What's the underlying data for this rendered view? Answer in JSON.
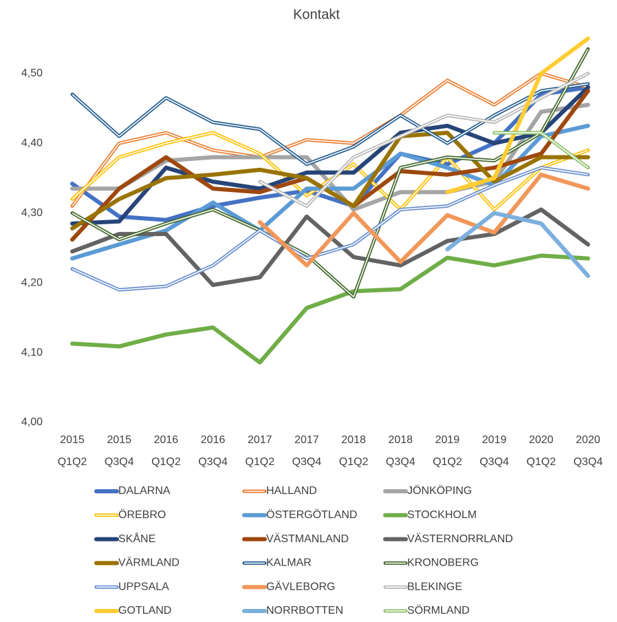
{
  "chart_data": {
    "type": "line",
    "title": "Kontakt",
    "categories": [
      "2015 Q1Q2",
      "2015 Q3Q4",
      "2016 Q1Q2",
      "2016 Q3Q4",
      "2017 Q1Q2",
      "2017 Q3Q4",
      "2018 Q1Q2",
      "2018 Q3Q4",
      "2019 Q1Q2",
      "2019 Q3Q4",
      "2020 Q1Q2",
      "2020 Q3Q4"
    ],
    "ylim": [
      4.0,
      4.55
    ],
    "yticks": [
      {
        "value": 4.0,
        "label": "4,00"
      },
      {
        "value": 4.1,
        "label": "4,10"
      },
      {
        "value": 4.2,
        "label": "4,20"
      },
      {
        "value": 4.3,
        "label": "4,30"
      },
      {
        "value": 4.4,
        "label": "4,40"
      },
      {
        "value": 4.5,
        "label": "4,50"
      }
    ],
    "grid": false,
    "legend": "bottom",
    "series": [
      {
        "name": "DALARNA",
        "color": "#4472c4",
        "outline": false,
        "values": [
          4.342,
          4.295,
          4.29,
          4.31,
          4.322,
          4.332,
          4.31,
          4.385,
          4.37,
          4.4,
          4.47,
          4.48
        ]
      },
      {
        "name": "HALLAND",
        "color": "#ed7d31",
        "outline": true,
        "values": [
          4.31,
          4.4,
          4.415,
          4.39,
          4.38,
          4.405,
          4.4,
          4.44,
          4.49,
          4.455,
          4.5,
          4.48
        ]
      },
      {
        "name": "JÖNKÖPING",
        "color": "#a5a5a5",
        "outline": false,
        "values": [
          4.335,
          4.335,
          4.375,
          4.38,
          4.38,
          4.38,
          4.305,
          4.33,
          4.33,
          4.345,
          4.445,
          4.455
        ]
      },
      {
        "name": "ÖREBRO",
        "color": "#ffc000",
        "outline": true,
        "values": [
          4.32,
          4.38,
          4.4,
          4.415,
          4.385,
          4.325,
          4.37,
          4.305,
          4.38,
          4.305,
          4.365,
          4.39
        ]
      },
      {
        "name": "ÖSTERGÖTLAND",
        "color": "#5b9bd5",
        "outline": false,
        "values": [
          4.235,
          4.255,
          4.275,
          4.315,
          4.275,
          4.335,
          4.335,
          4.385,
          4.365,
          4.34,
          4.41,
          4.425
        ]
      },
      {
        "name": "STOCKHOLM",
        "color": "#70ad47",
        "outline": false,
        "values": [
          4.113,
          4.109,
          4.126,
          4.136,
          4.086,
          4.164,
          4.188,
          4.191,
          4.236,
          4.225,
          4.239,
          4.235
        ]
      },
      {
        "name": "SKÅNE",
        "color": "#264478",
        "outline": false,
        "values": [
          4.285,
          4.288,
          4.365,
          4.345,
          4.335,
          4.358,
          4.358,
          4.415,
          4.425,
          4.4,
          4.415,
          4.48
        ]
      },
      {
        "name": "VÄSTMANLAND",
        "color": "#9e480e",
        "outline": false,
        "values": [
          4.262,
          4.335,
          4.38,
          4.335,
          4.33,
          4.35,
          4.31,
          4.36,
          4.355,
          4.365,
          4.385,
          4.475
        ]
      },
      {
        "name": "VÄSTERNORRLAND",
        "color": "#636363",
        "outline": false,
        "values": [
          4.245,
          4.27,
          4.27,
          4.197,
          4.208,
          4.295,
          4.237,
          4.225,
          4.26,
          4.27,
          4.305,
          4.255
        ]
      },
      {
        "name": "VÄRMLAND",
        "color": "#997300",
        "outline": false,
        "values": [
          4.278,
          4.32,
          4.35,
          4.355,
          4.362,
          4.35,
          4.31,
          4.41,
          4.415,
          4.345,
          4.38,
          4.38
        ]
      },
      {
        "name": "KALMAR",
        "color": "#255e91",
        "outline": true,
        "values": [
          4.47,
          4.41,
          4.465,
          4.43,
          4.42,
          4.37,
          4.395,
          4.44,
          4.4,
          4.44,
          4.475,
          4.485
        ]
      },
      {
        "name": "KRONOBERG",
        "color": "#43682b",
        "outline": true,
        "values": [
          4.3,
          4.262,
          4.285,
          4.305,
          4.275,
          4.24,
          4.18,
          4.365,
          4.38,
          4.375,
          4.415,
          4.535
        ]
      },
      {
        "name": "UPPSALA",
        "color": "#698ed0",
        "outline": true,
        "values": [
          4.22,
          4.19,
          4.195,
          4.225,
          4.275,
          4.235,
          4.255,
          4.305,
          4.31,
          4.34,
          4.365,
          4.355
        ]
      },
      {
        "name": "GÄVLEBORG",
        "color": "#f1975a",
        "outline": false,
        "values": [
          null,
          null,
          null,
          null,
          4.287,
          4.225,
          4.3,
          4.23,
          4.297,
          4.272,
          4.355,
          4.335
        ]
      },
      {
        "name": "BLEKINGE",
        "color": "#b7b7b7",
        "outline": true,
        "values": [
          null,
          null,
          null,
          null,
          4.345,
          4.31,
          4.38,
          4.41,
          4.44,
          4.43,
          4.465,
          4.5
        ]
      },
      {
        "name": "GOTLAND",
        "color": "#ffcd33",
        "outline": false,
        "values": [
          null,
          null,
          null,
          null,
          null,
          null,
          null,
          null,
          4.33,
          4.35,
          4.5,
          4.55
        ]
      },
      {
        "name": "NORRBOTTEN",
        "color": "#7cafdd",
        "outline": false,
        "values": [
          null,
          null,
          null,
          null,
          null,
          null,
          null,
          null,
          4.248,
          4.3,
          4.285,
          4.21
        ]
      },
      {
        "name": "SÖRMLAND",
        "color": "#8cc168",
        "outline": true,
        "values": [
          null,
          null,
          null,
          null,
          null,
          null,
          null,
          null,
          null,
          4.415,
          4.415,
          4.365
        ]
      }
    ]
  }
}
